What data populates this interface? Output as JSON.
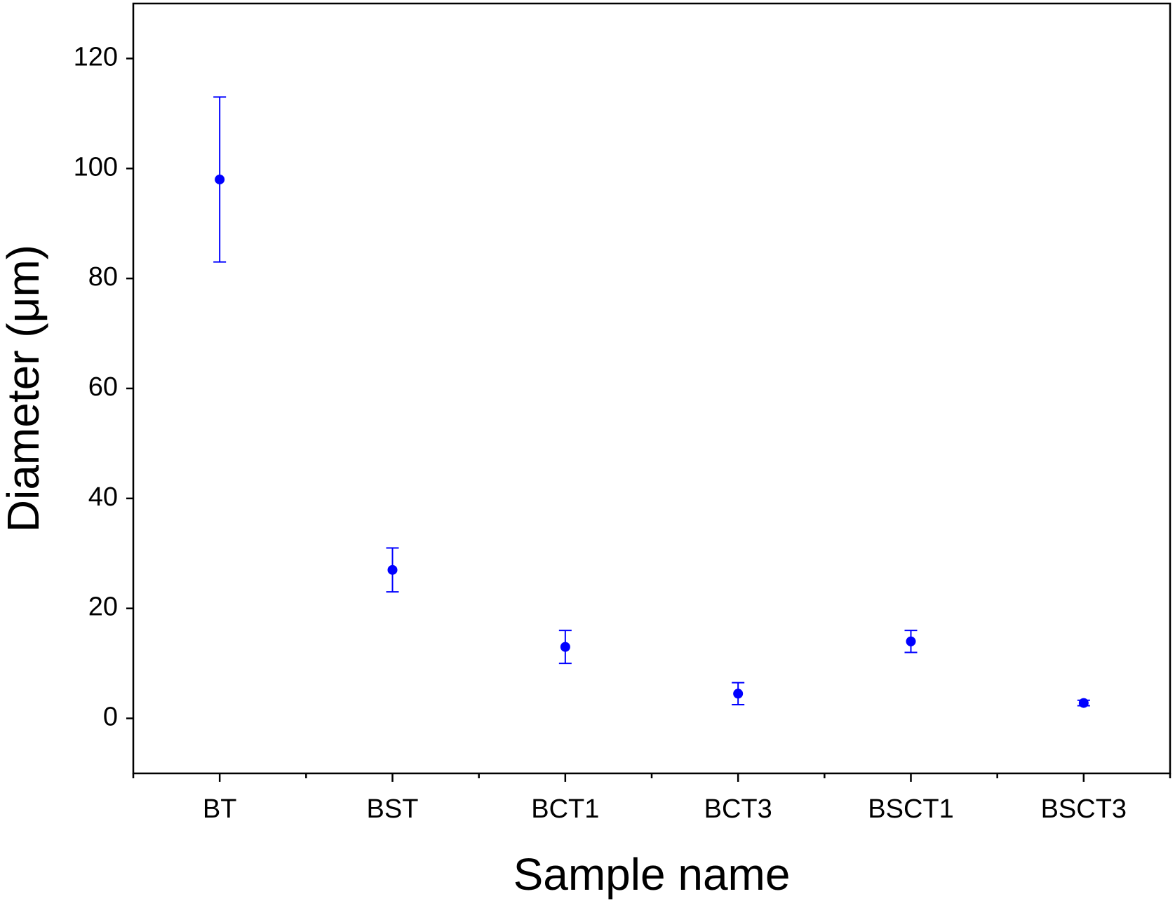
{
  "chart_data": {
    "type": "scatter",
    "x_label": "Sample name",
    "y_label": "Diameter (μm)",
    "categories": [
      "BT",
      "BST",
      "BCT1",
      "BCT3",
      "BSCT1",
      "BSCT3"
    ],
    "series": [
      {
        "color": "#0000ff",
        "values": [
          98,
          27,
          13,
          4.5,
          14,
          2.8
        ],
        "errors": [
          15,
          4,
          3,
          2,
          2,
          0.5
        ]
      }
    ],
    "ylim": [
      -10,
      130
    ],
    "yticks": [
      0,
      20,
      40,
      60,
      80,
      100,
      120
    ]
  }
}
